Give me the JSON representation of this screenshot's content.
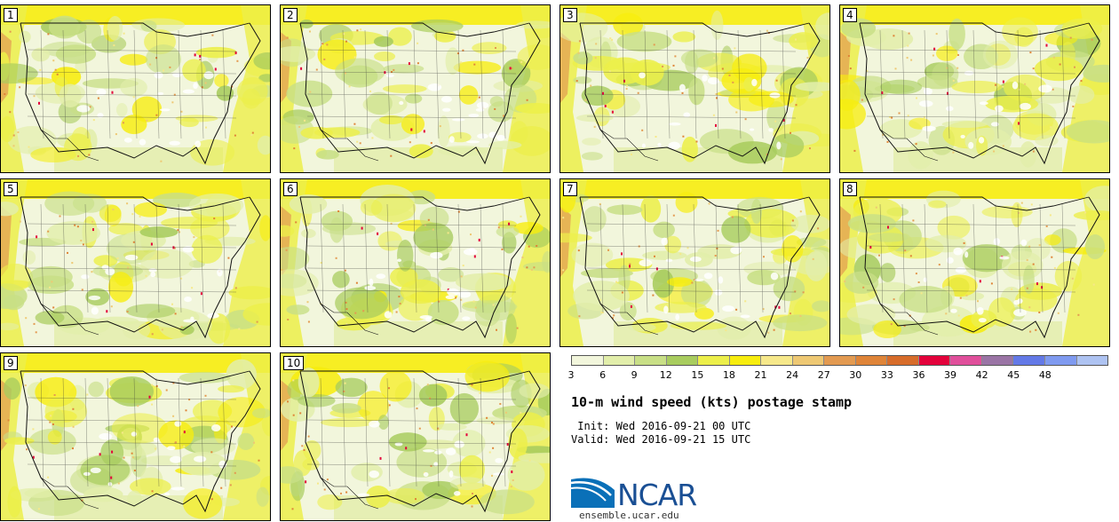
{
  "panels": [
    {
      "label": "1"
    },
    {
      "label": "2"
    },
    {
      "label": "3"
    },
    {
      "label": "4"
    },
    {
      "label": "5"
    },
    {
      "label": "6"
    },
    {
      "label": "7"
    },
    {
      "label": "8"
    },
    {
      "label": "9"
    },
    {
      "label": "10"
    }
  ],
  "colorbar": {
    "ticks": [
      "3",
      "6",
      "9",
      "12",
      "15",
      "18",
      "21",
      "24",
      "27",
      "30",
      "33",
      "36",
      "39",
      "42",
      "45",
      "48"
    ],
    "colors": [
      "#f2f6dc",
      "#e2eeaa",
      "#c8df86",
      "#a8cc5e",
      "#ecef4a",
      "#f7ed0e",
      "#f6e88a",
      "#eec873",
      "#e39a51",
      "#df8438",
      "#d76c2a",
      "#e3023b",
      "#e04f9b",
      "#9a74a5",
      "#6379e7",
      "#7f9af0",
      "#aec3f2"
    ]
  },
  "title": "10-m wind speed (kts) postage stamp",
  "init": " Init: Wed 2016-09-21 00 UTC",
  "valid": "Valid: Wed 2016-09-21 15 UTC",
  "logo": {
    "text": "NCAR",
    "url": "ensemble.ucar.edu",
    "color": "#1a4f94"
  }
}
